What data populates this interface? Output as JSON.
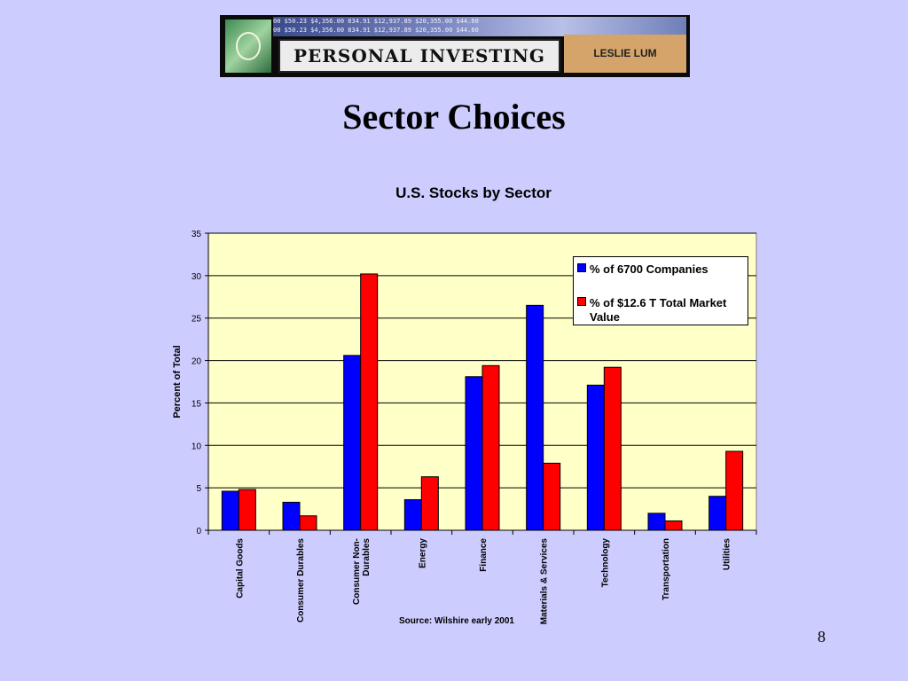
{
  "banner": {
    "ticker_text": "00  $50.23  $4,356.00  834.91  $12,937.89  $20,355.00  $44.60",
    "title": "PERSONAL INVESTING",
    "author": "LESLIE LUM"
  },
  "slide": {
    "title": "Sector Choices",
    "page_number": "8"
  },
  "chart_data": {
    "type": "bar",
    "title": "U.S. Stocks by Sector",
    "ylabel": "Percent of Total",
    "xlabel": "",
    "ylim": [
      0,
      35
    ],
    "yticks": [
      0,
      5,
      10,
      15,
      20,
      25,
      30,
      35
    ],
    "categories": [
      "Capital Goods",
      "Consumer Durables",
      "Consumer Non-Durables",
      "Energy",
      "Finance",
      "Materials & Services",
      "Technology",
      "Transportation",
      "Utilities"
    ],
    "category_lines": [
      [
        "Capital Goods"
      ],
      [
        "Consumer Durables"
      ],
      [
        "Consumer Non-",
        "Durables"
      ],
      [
        "Energy"
      ],
      [
        "Finance"
      ],
      [
        "Materials & Services"
      ],
      [
        "Technology"
      ],
      [
        "Transportation"
      ],
      [
        "Utilities"
      ]
    ],
    "series": [
      {
        "name": "% of 6700 Companies",
        "legend_lines": [
          "% of 6700 Companies"
        ],
        "color": "#0000ff",
        "values": [
          4.6,
          3.3,
          20.6,
          3.6,
          18.1,
          26.5,
          17.1,
          2.0,
          4.0
        ]
      },
      {
        "name": "% of $12.6 T Total Market Value",
        "legend_lines": [
          "% of $12.6 T Total Market",
          "Value"
        ],
        "color": "#ff0000",
        "values": [
          4.8,
          1.7,
          30.2,
          6.3,
          19.4,
          7.9,
          19.2,
          1.1,
          9.3
        ]
      }
    ],
    "plot_background": "#ffffc8",
    "grid": true,
    "legend_position": "top-right",
    "source": "Source: Wilshire early 2001"
  }
}
